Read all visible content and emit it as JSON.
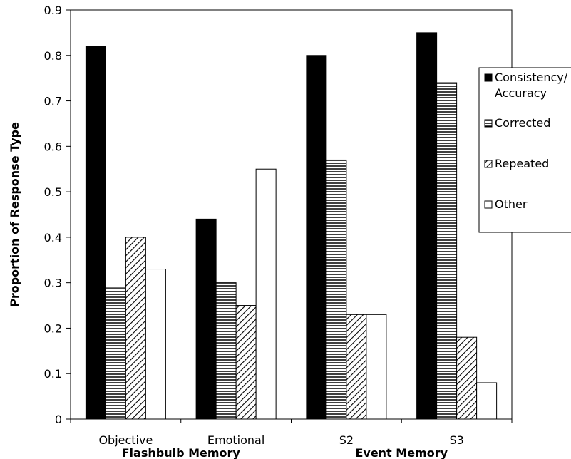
{
  "chart_data": {
    "type": "bar",
    "title": "",
    "ylabel": "Proportion of Response Type",
    "ylim": [
      0,
      0.9
    ],
    "yticks": [
      "0",
      "0.1",
      "0.2",
      "0.3",
      "0.4",
      "0.5",
      "0.6",
      "0.7",
      "0.8",
      "0.9"
    ],
    "categories": [
      "Objective",
      "Emotional",
      "S2",
      "S3"
    ],
    "groups": [
      {
        "label": "Flashbulb Memory",
        "categories": [
          "Objective",
          "Emotional"
        ]
      },
      {
        "label": "Event Memory",
        "categories": [
          "S2",
          "S3"
        ]
      }
    ],
    "series": [
      {
        "name": "Consistency/ Accuracy",
        "values": [
          0.82,
          0.44,
          0.8,
          0.85
        ],
        "pattern": "solid",
        "color": "#000000"
      },
      {
        "name": "Corrected",
        "values": [
          0.29,
          0.3,
          0.57,
          0.74
        ],
        "pattern": "horizontal-lines",
        "color": "#000000"
      },
      {
        "name": "Repeated",
        "values": [
          0.4,
          0.25,
          0.23,
          0.18
        ],
        "pattern": "diagonal-lines",
        "color": "#000000"
      },
      {
        "name": "Other",
        "values": [
          0.33,
          0.55,
          0.23,
          0.08
        ],
        "pattern": "white",
        "color": "#ffffff"
      }
    ],
    "legend_position": "right",
    "grid": false
  }
}
